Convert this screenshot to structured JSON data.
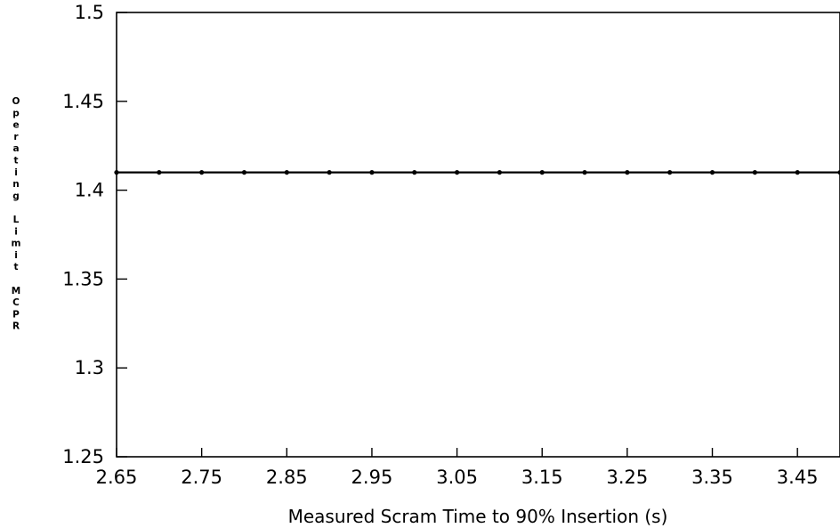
{
  "chart_data": {
    "type": "line",
    "title": "",
    "xlabel": "Measured Scram Time to 90% Insertion (s)",
    "ylabel": "Operating Limit MCPR",
    "xlim": [
      2.65,
      3.5
    ],
    "ylim": [
      1.25,
      1.5
    ],
    "x_ticks": [
      "2.65",
      "2.75",
      "2.85",
      "2.95",
      "3.05",
      "3.15",
      "3.25",
      "3.35",
      "3.45"
    ],
    "y_ticks": [
      "1.5",
      "1.45",
      "1.4",
      "1.35",
      "1.3",
      "1.25"
    ],
    "grid": false,
    "series": [
      {
        "x": [
          2.65,
          2.7,
          2.75,
          2.8,
          2.85,
          2.9,
          2.95,
          3.0,
          3.05,
          3.1,
          3.15,
          3.2,
          3.25,
          3.3,
          3.35,
          3.4,
          3.45,
          3.5
        ],
        "values": [
          1.41,
          1.41,
          1.41,
          1.41,
          1.41,
          1.41,
          1.41,
          1.41,
          1.41,
          1.41,
          1.41,
          1.41,
          1.41,
          1.41,
          1.41,
          1.41,
          1.41,
          1.41
        ]
      }
    ]
  }
}
